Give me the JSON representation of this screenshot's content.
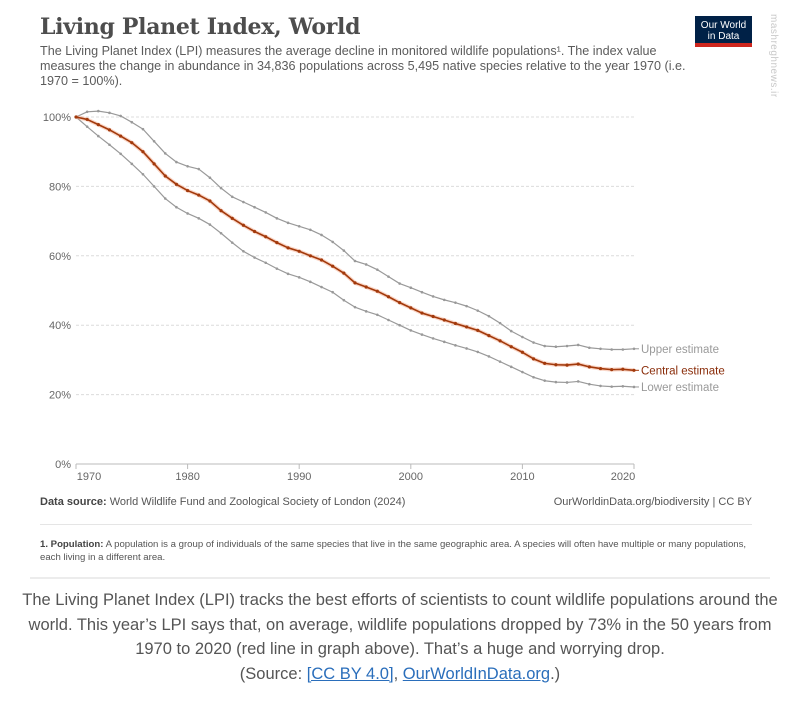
{
  "header": {
    "title": "Living Planet Index, World",
    "subtitle": "The Living Planet Index (LPI) measures the average decline in monitored wildlife populations¹. The index value measures the change in abundance in 34,836 populations across 5,495 native species relative to the year 1970 (i.e. 1970 = 100%).",
    "logo_line1": "Our World",
    "logo_line2": "in Data",
    "watermark": "mashreghnews.ir"
  },
  "chart_data": {
    "type": "line",
    "title": "Living Planet Index, World",
    "xlabel": "",
    "ylabel": "",
    "xlim": [
      1970,
      2020
    ],
    "ylim": [
      0,
      100
    ],
    "x_ticks": [
      1970,
      1980,
      1990,
      2000,
      2010,
      2020
    ],
    "y_ticks": [
      0,
      20,
      40,
      60,
      80,
      100
    ],
    "y_tick_labels": [
      "0%",
      "20%",
      "40%",
      "60%",
      "80%",
      "100%"
    ],
    "grid": true,
    "legend": "right-end-labels",
    "x": [
      1970,
      1971,
      1972,
      1973,
      1974,
      1975,
      1976,
      1977,
      1978,
      1979,
      1980,
      1981,
      1982,
      1983,
      1984,
      1985,
      1986,
      1987,
      1988,
      1989,
      1990,
      1991,
      1992,
      1993,
      1994,
      1995,
      1996,
      1997,
      1998,
      1999,
      2000,
      2001,
      2002,
      2003,
      2004,
      2005,
      2006,
      2007,
      2008,
      2009,
      2010,
      2011,
      2012,
      2013,
      2014,
      2015,
      2016,
      2017,
      2018,
      2019,
      2020
    ],
    "series": [
      {
        "name": "Upper estimate",
        "color": "#999999",
        "values": [
          100,
          101.5,
          101.7,
          101.2,
          100.3,
          98.5,
          96.5,
          93,
          89.5,
          87,
          85.8,
          85,
          82.5,
          79.5,
          77,
          75.5,
          74,
          72.5,
          70.8,
          69.5,
          68.5,
          67.5,
          66,
          64,
          61.5,
          58.5,
          57.5,
          56,
          54,
          52,
          50.8,
          49.5,
          48.3,
          47.3,
          46.5,
          45.5,
          44.2,
          42.6,
          40.6,
          38.3,
          36.6,
          35,
          34,
          33.8,
          34,
          34.3,
          33.5,
          33.2,
          33,
          33,
          33.2
        ]
      },
      {
        "name": "Central estimate",
        "color": "#a2390b",
        "values": [
          100,
          99.3,
          97.8,
          96.3,
          94.5,
          92.6,
          90,
          86.5,
          83,
          80.6,
          78.8,
          77.5,
          75.8,
          73,
          70.8,
          68.8,
          67,
          65.5,
          63.8,
          62.3,
          61.3,
          60,
          58.8,
          57,
          55,
          52.2,
          51,
          49.8,
          48.2,
          46.5,
          45,
          43.5,
          42.5,
          41.5,
          40.5,
          39.5,
          38.5,
          37,
          35.5,
          33.8,
          32.2,
          30.3,
          29,
          28.6,
          28.5,
          28.8,
          28,
          27.5,
          27.2,
          27.3,
          27
        ]
      },
      {
        "name": "Lower estimate",
        "color": "#999999",
        "values": [
          100,
          97.2,
          94.5,
          92,
          89.4,
          86.5,
          83.5,
          80,
          76.5,
          74,
          72.2,
          70.8,
          69,
          66.5,
          63.8,
          61.3,
          59.5,
          58,
          56.3,
          54.8,
          53.8,
          52.5,
          51,
          49.5,
          47.2,
          45.2,
          44,
          43,
          41.5,
          40,
          38.5,
          37.3,
          36.2,
          35.2,
          34.2,
          33.3,
          32.3,
          31,
          29.5,
          28,
          26.5,
          25,
          24,
          23.6,
          23.5,
          23.8,
          23,
          22.5,
          22.3,
          22.4,
          22.2
        ]
      }
    ]
  },
  "source": {
    "label": "Data source:",
    "text": "World Wildlife Fund and Zoological Society of London (2024)",
    "url_text": "OurWorldinData.org/biodiversity | CC BY"
  },
  "footnote": {
    "label": "1. Population:",
    "text": "A population is a group of individuals of the same species that live in the same geographic area. A species will often have multiple or many populations, each living in a different area."
  },
  "article": {
    "text": "The Living Planet Index (LPI) tracks the best efforts of scientists to count wildlife populations around the world. This year’s LPI says that, on average, wildlife populations dropped by 73% in the 50 years from 1970 to 2020 (red line in graph above). That’s a huge and worrying drop.",
    "source_prefix": "(Source: ",
    "link1": "[CC BY 4.0]",
    "between": ", ",
    "link2": "OurWorldInData.org",
    "suffix": ".)"
  }
}
